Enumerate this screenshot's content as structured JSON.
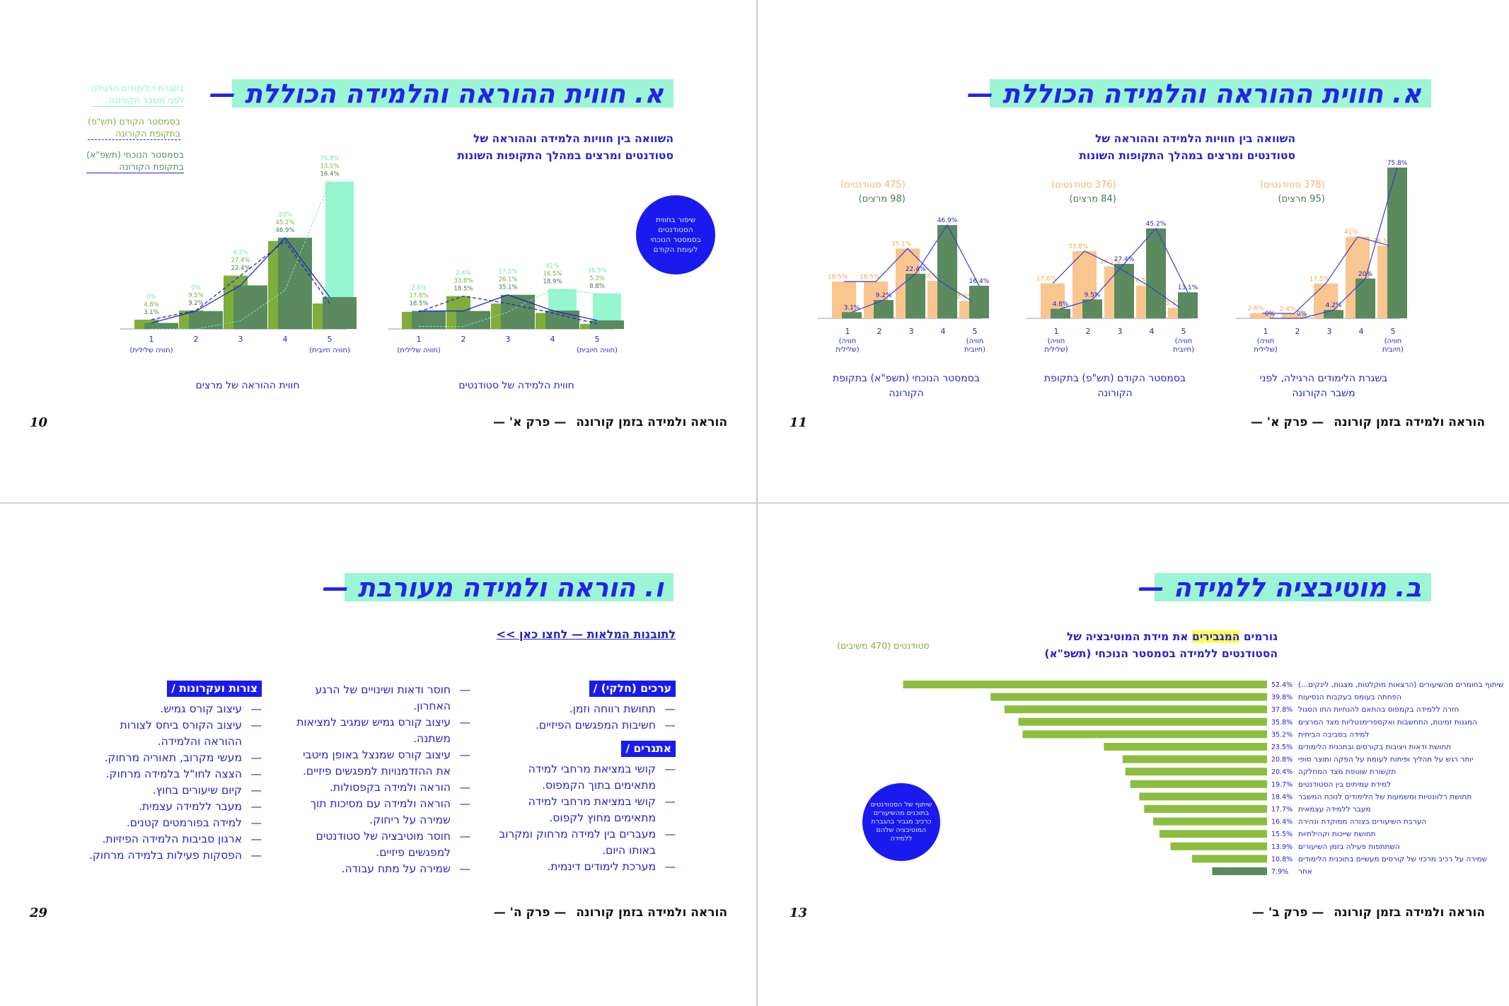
{
  "footer_common": "הוראה ולמידה בזמן קורונה",
  "colors": {
    "accent": "#1a1aee",
    "title_bg": "#9cf5d5",
    "orange": "#f8c68e",
    "dark_green": "#5a8a5e",
    "lime": "#7fae3a",
    "mint": "#8ff5cc"
  },
  "panel_a_left": {
    "title": "א. חווית ההוראה והלמידה הכוללת —",
    "subtitle_1": "השוואה בין חוויות הלמידה וההוראה של",
    "subtitle_2": "סטודנטים ומרצים במהלך התקופות השונות",
    "legend": [
      {
        "line1": "בשגרת הלימודים הרגילה",
        "line2": "לפני משבר הקורונה"
      },
      {
        "line1": "בסמסטר הקודם (תש\"פ)",
        "line2": "בתקופת הקורונה"
      },
      {
        "line1": "בסמסטר הנוכחי (תשפ\"א)",
        "line2": "בתקופת הקורונה"
      }
    ],
    "circle_text": "שיפור בחווית הסטודנטים בסמסטר הנוכחי לעומת הקודם",
    "footer_chapter": "— פרק א' —",
    "page": "10"
  },
  "panel_a_right": {
    "title": "א. חווית ההוראה והלמידה הכוללת —",
    "subtitle_1": "השוואה בין חוויות הלמידה וההוראה של",
    "subtitle_2": "סטודנטים ומרצים במהלך התקופות השונות",
    "footer_chapter": "— פרק א' —",
    "page": "11"
  },
  "panel_b": {
    "title": "ב. מוטיבציה ללמידה —",
    "subtitle_1_pre": "גורמים ",
    "subtitle_1_highlight": "המגבירים",
    "subtitle_1_post": " את מידת המוטיבציה של",
    "subtitle_2": "הסטודנטים ללמידה בסמסטר הנוכחי (תשפ\"א)",
    "respondents": "סטודנטים (470 משיבים)",
    "circle_text": "שיתוף של הסטודנטים בתוכנים מהשיעורים כרכיב מגביר בהגברת המוטיבציה שלהם ללמידה",
    "footer_chapter": "— פרק ב' —",
    "page": "13"
  },
  "panel_v": {
    "title": "ו. הוראה ולמידה מעורבת —",
    "link_text": "לתובנות המלאות — לחצו כאן  >>",
    "col1_hdr1": "ערכים (חלקי) /",
    "col1_items1": [
      "תחושת רווחה וזמן.",
      "חשיבות המפגשים הפיזיים."
    ],
    "col1_hdr2": "אתגרים /",
    "col1_items2": [
      "קושי במציאת מרחבי למידה מתאימים בתוך הקמפוס.",
      "קושי במציאת מרחבי למידה מתאימים מחוץ לקפוס.",
      "מעברים בין למידה מרחוק ומקרוב באותו היום.",
      "מערכת לימודים דינמית."
    ],
    "col2_items": [
      "חוסר ודאות ושינויים של הרגע האחרון.",
      "עיצוב קורס גמיש שמגיב למציאות משתנה.",
      "עיצוב קורס שמנצל באופן מיטבי את ההזדמנויות למפגשים פיזיים.",
      "הוראה ולמידה בקפסולות.",
      "הוראה ולמידה עם מסיכות תוך שמירה על ריחוק.",
      "חוסר מוטיבציה של סטודנטים למפגשים פיזיים.",
      "שמירה על מתח עבודה."
    ],
    "col3_hdr": "צורות ועקרונות /",
    "col3_items": [
      "עיצוב קורס גמיש.",
      "עיצוב הקורס ביחס לצורות ההוראה והלמידה.",
      "מעשי מקרוב, תאוריה מרחוק.",
      "הצצה לחו\"ל בלמידה מרחוק.",
      "קיום שיעורים בחוץ.",
      "מעבר ללמידה עצמית.",
      "למידה בפורמטים קטנים.",
      "ארגון סביבות הלמידה הפיזיות.",
      "הפסקות פעילות בלמידה מרחוק."
    ],
    "footer_chapter": "— פרק ה' —",
    "page": "29"
  },
  "chart_data": [
    {
      "type": "bar",
      "title": "חווית הלמידה של סטודנטים",
      "categories": [
        "1 (חוויה שלילית)",
        "2",
        "3",
        "4",
        "5 (חוויה חיובית)"
      ],
      "series": [
        {
          "name": "בשגרת הלימודים הרגילה, לפני משבר הקורונה",
          "values": [
            2.6,
            2.4,
            17.5,
            41,
            36.5
          ]
        },
        {
          "name": "בסמסטר הקודם (תש\"פ)",
          "values": [
            17.6,
            33.8,
            26.1,
            16.5,
            5.3
          ]
        },
        {
          "name": "בסמסטר הנוכחי (תשפ\"א)",
          "values": [
            18.5,
            18.5,
            35.1,
            18.9,
            8.8
          ]
        }
      ],
      "ylim": [
        0,
        80
      ]
    },
    {
      "type": "bar",
      "title": "חווית ההוראה של מרצים",
      "categories": [
        "1 (חוויה שלילית)",
        "2",
        "3",
        "4",
        "5 (חוויה חיובית)"
      ],
      "series": [
        {
          "name": "בשגרת הלימודים הרגילה, לפני משבר הקורונה",
          "values": [
            0,
            0,
            4.2,
            20,
            75.8
          ]
        },
        {
          "name": "בסמסטר הקודם (תש\"פ)",
          "values": [
            4.8,
            9.5,
            27.4,
            45.2,
            13.1
          ]
        },
        {
          "name": "בסמסטר הנוכחי (תשפ\"א)",
          "values": [
            3.1,
            9.2,
            22.4,
            46.9,
            16.4
          ]
        }
      ],
      "ylim": [
        0,
        80
      ]
    },
    {
      "type": "bar",
      "title": "בשגרת הלימודים הרגילה, לפני משבר הקורונה",
      "respondents": [
        "(378 סטודנטים)",
        "(95 מרצים)"
      ],
      "categories": [
        "1 (חוויה שלילית)",
        "2",
        "3",
        "4",
        "5 (חוויה חיובית)"
      ],
      "series": [
        {
          "name": "סטודנטים",
          "values": [
            2.6,
            2.4,
            17.5,
            41,
            36.5
          ]
        },
        {
          "name": "מרצים",
          "values": [
            0,
            0,
            4.2,
            20,
            75.8
          ]
        }
      ],
      "ylim": [
        0,
        80
      ]
    },
    {
      "type": "bar",
      "title": "בסמסטר הקודם (תש\"פ) בתקופת הקורונה",
      "respondents": [
        "(376 סטודנטים)",
        "(84 מרצים)"
      ],
      "categories": [
        "1 (חוויה שלילית)",
        "2",
        "3",
        "4",
        "5 (חוויה חיובית)"
      ],
      "series": [
        {
          "name": "סטודנטים",
          "values": [
            17.6,
            33.8,
            26.1,
            16.5,
            5.3
          ]
        },
        {
          "name": "מרצים",
          "values": [
            4.8,
            9.5,
            27.4,
            45.2,
            13.1
          ]
        }
      ],
      "ylim": [
        0,
        80
      ]
    },
    {
      "type": "bar",
      "title": "בסמסטר הנוכחי (תשפ\"א) בתקופת הקורונה",
      "respondents": [
        "(475 סטודנטים)",
        "(98 מרצים)"
      ],
      "categories": [
        "1 (חוויה שלילית)",
        "2",
        "3",
        "4",
        "5 (חוויה חיובית)"
      ],
      "series": [
        {
          "name": "סטודנטים",
          "values": [
            18.5,
            18.5,
            35.1,
            18.9,
            8.8
          ]
        },
        {
          "name": "מרצים",
          "values": [
            3.1,
            9.2,
            22.4,
            46.9,
            16.4
          ]
        }
      ],
      "ylim": [
        0,
        80
      ]
    },
    {
      "type": "bar",
      "orientation": "horizontal",
      "title": "גורמים המגבירים את מידת המוטיבציה של הסטודנטים ללמידה בסמסטר הנוכחי (תשפ\"א)",
      "categories": [
        "שיתוף בחומרים מהשיעורים (הרצאות מוקלטות, מצגות, לינקים...)",
        "הפחתה בעומס בעקבות הנסיעות",
        "חזרה ללמידה בקמפוס בהתאם להנחיות התו הסגול",
        "המגנות זמינות, התחשבות ואקספרימנטליות מצד המרצים",
        "למידה בסביבה הביתית",
        "תחושת ודאות ויציבות בקורסים ובתכנית הלימודים",
        "יותר רגש על תהליך ופיתוח לעומת על הפקה ותוצר סופי",
        "תקשורת שוטפת מצד המחלקה",
        "למידת עמיתים בין הסטודנטים",
        "תחושת רלוונטיות ומשמעות של הלימודים לנוכח המשבר",
        "מעבר ללמידה עצמאית",
        "הערבת השיעורים בצורה ממוקדת ונהירה",
        "תחושת שייכות וקהילתיות",
        "השתתפות פעילה בזמן השיעורים",
        "שמירה על רכיב מרכזי של קורסים מעשיים בתוכנית הלימודים",
        "אחר"
      ],
      "values": [
        52.4,
        39.8,
        37.8,
        35.8,
        35.2,
        23.5,
        20.8,
        20.4,
        19.7,
        18.4,
        17.7,
        16.4,
        15.5,
        13.9,
        10.8,
        7.9
      ],
      "xlim": [
        0,
        55
      ]
    }
  ]
}
